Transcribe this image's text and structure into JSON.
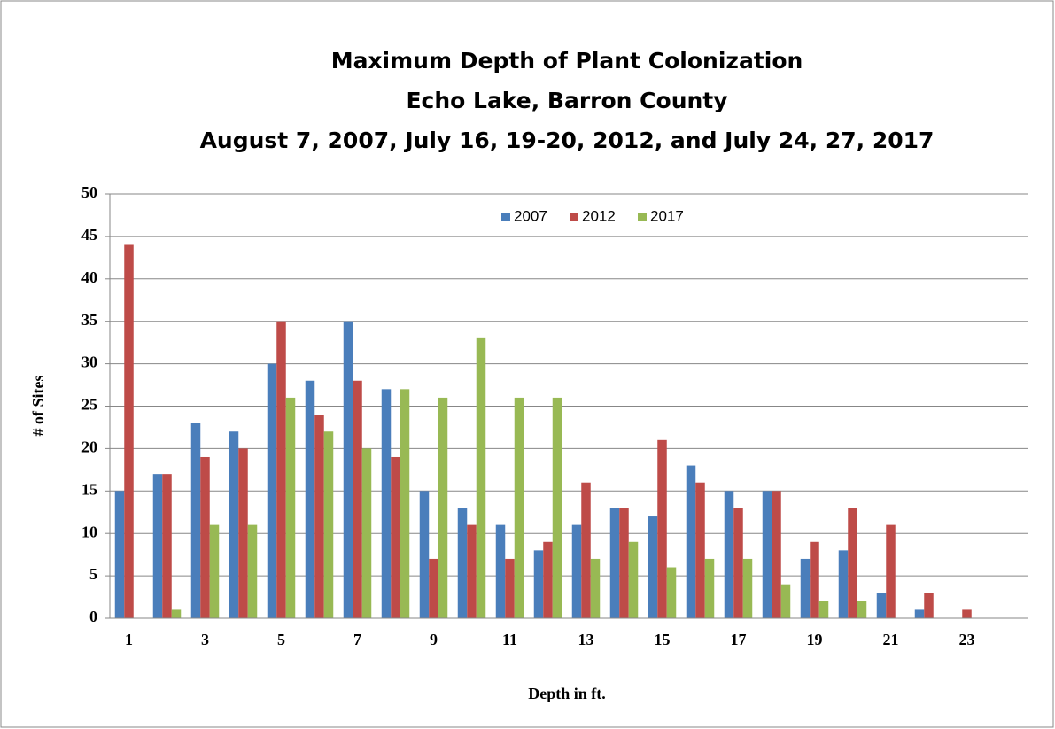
{
  "chart_data": {
    "type": "bar",
    "title": [
      "Maximum Depth of Plant Colonization",
      "Echo Lake, Barron County",
      "August 7, 2007, July 16, 19-20, 2012, and July 24, 27, 2017"
    ],
    "xlabel": "Depth in ft.",
    "ylabel": "# of Sites",
    "categories": [
      "1",
      null,
      "3",
      null,
      "5",
      null,
      "7",
      null,
      "9",
      null,
      "11",
      null,
      "13",
      null,
      "15",
      null,
      "17",
      null,
      "19",
      null,
      "21",
      null,
      "23"
    ],
    "series": [
      {
        "name": "2007",
        "color": "#4a7ebb",
        "values": [
          15,
          17,
          23,
          22,
          30,
          28,
          35,
          27,
          15,
          13,
          11,
          8,
          11,
          13,
          12,
          18,
          15,
          15,
          7,
          8,
          3,
          1,
          0
        ]
      },
      {
        "name": "2012",
        "color": "#be4b48",
        "values": [
          44,
          17,
          19,
          20,
          35,
          24,
          28,
          19,
          7,
          11,
          7,
          9,
          16,
          13,
          21,
          16,
          13,
          15,
          9,
          13,
          11,
          3,
          1
        ]
      },
      {
        "name": "2017",
        "color": "#98b954",
        "values": [
          0,
          1,
          11,
          11,
          26,
          22,
          20,
          27,
          26,
          33,
          26,
          26,
          7,
          9,
          6,
          7,
          7,
          4,
          2,
          2,
          0,
          0,
          0
        ]
      }
    ],
    "ylim": [
      0,
      50
    ],
    "yticks": [
      0,
      5,
      10,
      15,
      20,
      25,
      30,
      35,
      40,
      45,
      50
    ],
    "grid": true,
    "legend": "top"
  }
}
